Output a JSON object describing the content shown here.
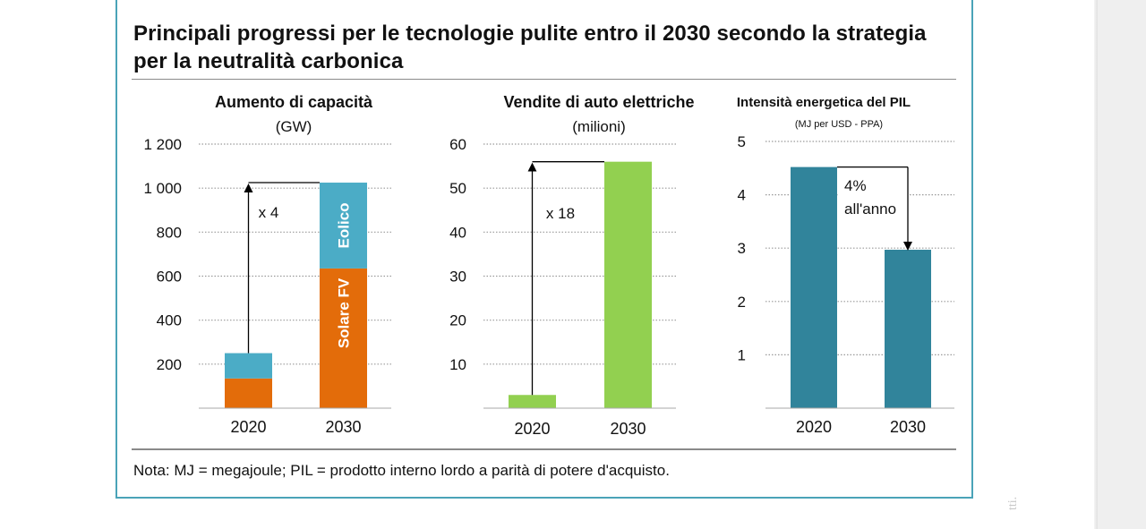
{
  "title": "Principali progressi per le tecnologie pulite entro il 2030 secondo la strategia per la neutralità carbonica",
  "note": "Nota: MJ = megajoule; PIL = prodotto interno lordo a parità di potere d'acquisto.",
  "margin_text": "tti.",
  "colors": {
    "frame": "#4aa3b8",
    "solar": "#e36c0a",
    "wind": "#4bacc6",
    "ev": "#92d050",
    "intensity": "#31849b"
  },
  "chart_data": [
    {
      "type": "bar",
      "stacked": true,
      "title": "Aumento di capacità",
      "subtitle": "(GW)",
      "categories": [
        "2020",
        "2030"
      ],
      "ylim": [
        0,
        1200
      ],
      "yticks": [
        "200",
        "400",
        "600",
        "800",
        "1 000",
        "1 200"
      ],
      "ytick_values": [
        200,
        400,
        600,
        800,
        1000,
        1200
      ],
      "series": [
        {
          "name": "Solare FV",
          "values": [
            135,
            635
          ]
        },
        {
          "name": "Eolico",
          "values": [
            115,
            390
          ]
        }
      ],
      "annotation": "x 4",
      "grid": true
    },
    {
      "type": "bar",
      "title": "Vendite di auto elettriche",
      "subtitle": "(milioni)",
      "categories": [
        "2020",
        "2030"
      ],
      "ylim": [
        0,
        60
      ],
      "yticks": [
        "10",
        "20",
        "30",
        "40",
        "50",
        "60"
      ],
      "ytick_values": [
        10,
        20,
        30,
        40,
        50,
        60
      ],
      "values": [
        3,
        56
      ],
      "annotation": "x 18",
      "grid": true
    },
    {
      "type": "bar",
      "title": "Intensità energetica del PIL",
      "subtitle": "(MJ per USD - PPA)",
      "categories": [
        "2020",
        "2030"
      ],
      "ylim": [
        0,
        5
      ],
      "yticks": [
        "1",
        "2",
        "3",
        "4",
        "5"
      ],
      "ytick_values": [
        1,
        2,
        3,
        4,
        5
      ],
      "values": [
        4.52,
        2.97
      ],
      "annotation": [
        "4%",
        "all'anno"
      ],
      "grid": true
    }
  ]
}
